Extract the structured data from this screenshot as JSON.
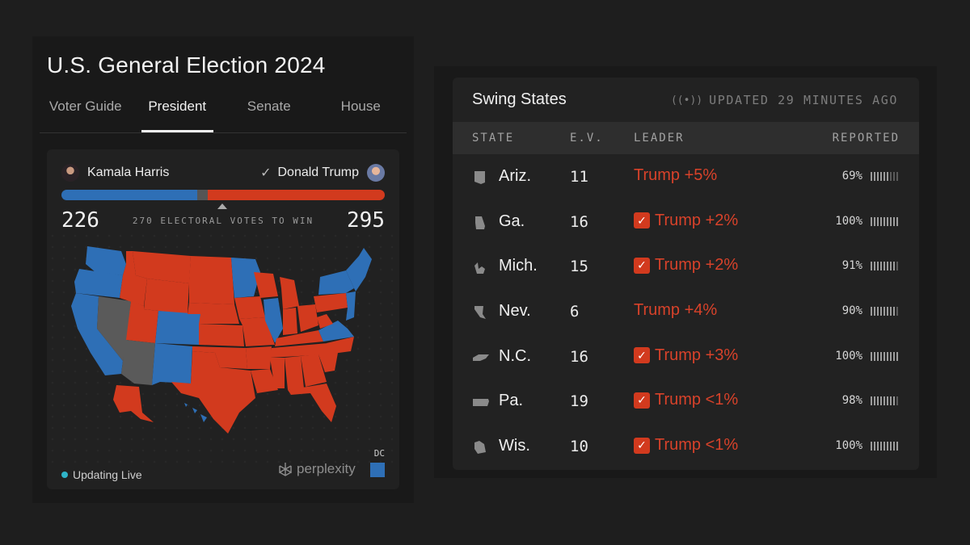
{
  "election": {
    "title": "U.S. General Election 2024",
    "tabs": [
      {
        "label": "Voter Guide",
        "active": false
      },
      {
        "label": "President",
        "active": true
      },
      {
        "label": "Senate",
        "active": false
      },
      {
        "label": "House",
        "active": false
      }
    ],
    "candidates": {
      "left": {
        "name": "Kamala Harris",
        "electoral_votes": "226"
      },
      "right": {
        "name": "Donald Trump",
        "electoral_votes": "295",
        "winner_mark": "✓"
      }
    },
    "to_win_label": "270 ELECTORAL VOTES TO WIN",
    "bar": {
      "harris_ev": 226,
      "uncalled_ev": 17,
      "trump_ev": 295,
      "to_win": 270
    },
    "live_label": "Updating Live",
    "brand": "perplexity",
    "dc_label": "DC",
    "colors": {
      "dem": "#2e6fb6",
      "rep": "#d23a1e",
      "undecided": "#5a5a5a"
    }
  },
  "swing": {
    "title": "Swing States",
    "updated_icon": "broadcast-icon",
    "updated_text": "UPDATED 29 MINUTES AGO",
    "columns": {
      "state": "STATE",
      "ev": "E.V.",
      "leader": "LEADER",
      "reported": "REPORTED"
    },
    "rows": [
      {
        "state": "Ariz.",
        "ev": "11",
        "leader": "Trump +5%",
        "called": false,
        "reported": "69%",
        "reported_value": 69
      },
      {
        "state": "Ga.",
        "ev": "16",
        "leader": "Trump +2%",
        "called": true,
        "reported": "100%",
        "reported_value": 100
      },
      {
        "state": "Mich.",
        "ev": "15",
        "leader": "Trump +2%",
        "called": true,
        "reported": "91%",
        "reported_value": 91
      },
      {
        "state": "Nev.",
        "ev": "6",
        "leader": "Trump +4%",
        "called": false,
        "reported": "90%",
        "reported_value": 90
      },
      {
        "state": "N.C.",
        "ev": "16",
        "leader": "Trump +3%",
        "called": true,
        "reported": "100%",
        "reported_value": 100
      },
      {
        "state": "Pa.",
        "ev": "19",
        "leader": "Trump <1%",
        "called": true,
        "reported": "98%",
        "reported_value": 98
      },
      {
        "state": "Wis.",
        "ev": "10",
        "leader": "Trump <1%",
        "called": true,
        "reported": "100%",
        "reported_value": 100
      }
    ]
  }
}
